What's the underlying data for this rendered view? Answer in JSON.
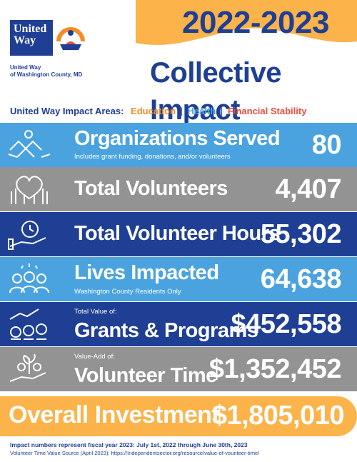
{
  "logo": {
    "line1": "United",
    "line2": "Way"
  },
  "org_name": {
    "line1": "United Way",
    "line2": "of Washington County, MD"
  },
  "year": "2022-2023",
  "title": "Collective Impact",
  "impact_areas": {
    "label": "United Way Impact Areas:",
    "education": "Education",
    "health": "Health",
    "financial": "Financial Stability",
    "separator": "|"
  },
  "rows": [
    {
      "pre": "",
      "label": "Organizations Served",
      "sub": "Includes grant funding, donations, and/or volunteers",
      "value": "80",
      "icon": "handshake-icon"
    },
    {
      "pre": "",
      "label": "Total Volunteers",
      "sub": "",
      "value": "4,407",
      "icon": "raised-hands-icon"
    },
    {
      "pre": "",
      "label": "Total Volunteer Hours",
      "sub": "",
      "value": "55,302",
      "icon": "clock-hand-icon"
    },
    {
      "pre": "",
      "label": "Lives Impacted",
      "sub": "Washington County Residents Only",
      "value": "64,638",
      "icon": "people-group-icon"
    },
    {
      "pre": "Total Value of:",
      "label": "Grants & Programs",
      "sub": "",
      "value": "$452,558",
      "icon": "money-chart-icon"
    },
    {
      "pre": "Value-Add of:",
      "label": "Volunteer Time",
      "sub": "",
      "value": "$1,352,452",
      "icon": "plant-money-icon"
    }
  ],
  "overall": {
    "label": "Overall Investment",
    "value": "$1,805,010"
  },
  "footer": {
    "note": "Impact numbers represent fiscal year 2023:  July 1st, 2022 through June 30th, 2023",
    "source": "Volunteer Time Value Source (April 2023): https://Independentsector.org/resource/value-of-vounteer-time/"
  },
  "colors": {
    "navy": "#1f3f94",
    "light_blue": "#4aa3df",
    "gray": "#939393",
    "orange": "#fbb34a",
    "red": "#e84d3d"
  }
}
